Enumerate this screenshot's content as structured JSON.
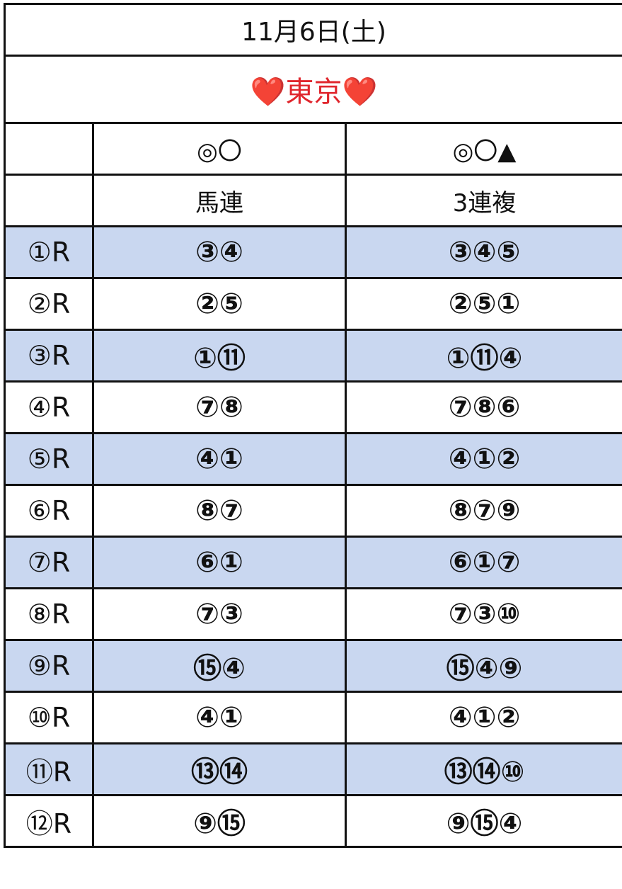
{
  "table": {
    "title": "11月6日(土)",
    "venue": "❤️東京❤️",
    "header_marks": [
      "◎〇",
      "◎〇▲"
    ],
    "header_types": [
      "馬連",
      "3連複"
    ],
    "rows": [
      [
        "①R",
        "③④",
        "③④⑤"
      ],
      [
        "②R",
        "②⑤",
        "②⑤①"
      ],
      [
        "③R",
        "①⑪",
        "①⑪④"
      ],
      [
        "④R",
        "⑦⑧",
        "⑦⑧⑥"
      ],
      [
        "⑤R",
        "④①",
        "④①②"
      ],
      [
        "⑥R",
        "⑧⑦",
        "⑧⑦⑨"
      ],
      [
        "⑦R",
        "⑥①",
        "⑥①⑦"
      ],
      [
        "⑧R",
        "⑦③",
        "⑦③⑩"
      ],
      [
        "⑨R",
        "⑮④",
        "⑮④⑨"
      ],
      [
        "⑩R",
        "④①",
        "④①②"
      ],
      [
        "⑪R",
        "⑬⑭",
        "⑬⑭⑩"
      ],
      [
        "⑫R",
        "⑨⑮",
        "⑨⑮④"
      ]
    ]
  }
}
